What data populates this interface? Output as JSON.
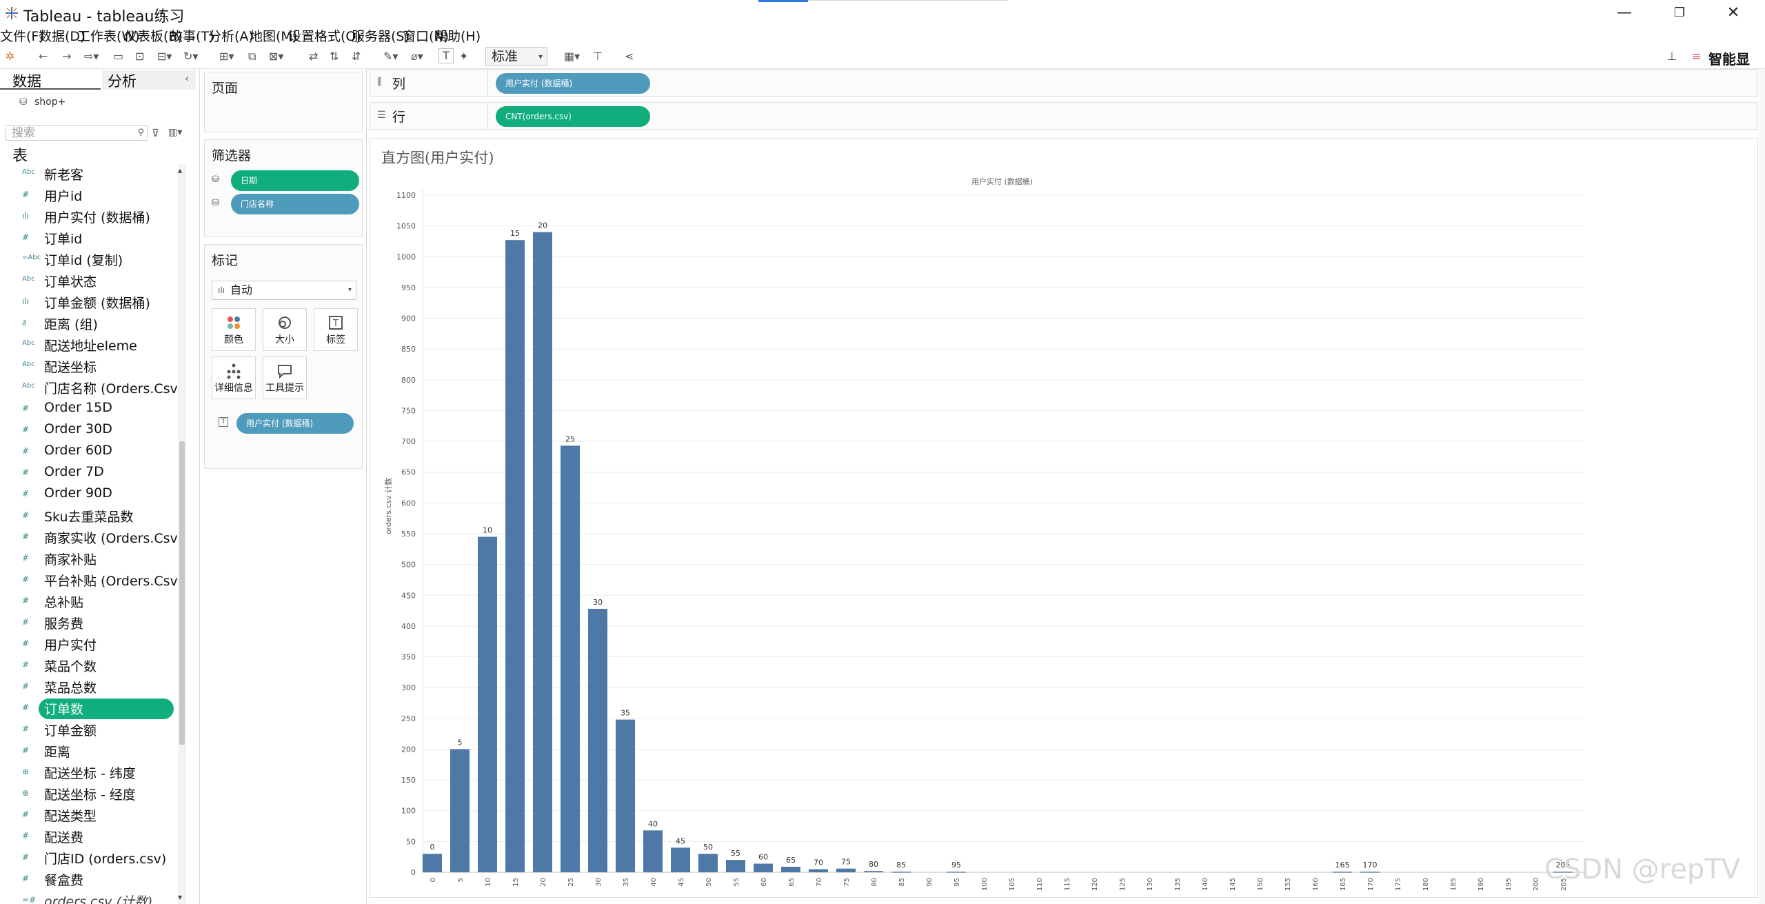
{
  "window": {
    "title": "Tableau - tableau练习",
    "minimize": "—",
    "restore": "❐",
    "close": "✕"
  },
  "menu": [
    "文件(F)",
    "数据(D)",
    "工作表(W)",
    "仪表板(B)",
    "故事(T)",
    "分析(A)",
    "地图(M)",
    "设置格式(O)",
    "服务器(S)",
    "窗口(N)",
    "帮助(H)"
  ],
  "toolbar": {
    "standard_select": "标准",
    "smart": "智能显"
  },
  "datapane": {
    "tab_data": "数据",
    "tab_analysis": "分析",
    "datasource": "shop+",
    "search_placeholder": "搜索",
    "table_header": "表",
    "fields": [
      {
        "icon": "Abc",
        "name": "新老客"
      },
      {
        "icon": "#",
        "name": "用户id"
      },
      {
        "icon": "ılı",
        "name": "用户实付 (数据桶)"
      },
      {
        "icon": "#",
        "name": "订单id"
      },
      {
        "icon": "=Abc",
        "name": "订单id (复制)"
      },
      {
        "icon": "Abc",
        "name": "订单状态"
      },
      {
        "icon": "ılı",
        "name": "订单金额 (数据桶)"
      },
      {
        "icon": "∂",
        "name": "距离 (组)"
      },
      {
        "icon": "Abc",
        "name": "配送地址eleme"
      },
      {
        "icon": "Abc",
        "name": "配送坐标"
      },
      {
        "icon": "Abc",
        "name": "门店名称 (Orders.Csv)"
      },
      {
        "icon": "#",
        "name": "Order 15D"
      },
      {
        "icon": "#",
        "name": "Order 30D"
      },
      {
        "icon": "#",
        "name": "Order 60D"
      },
      {
        "icon": "#",
        "name": "Order 7D"
      },
      {
        "icon": "#",
        "name": "Order 90D"
      },
      {
        "icon": "#",
        "name": "Sku去重菜品数"
      },
      {
        "icon": "#",
        "name": "商家实收 (Orders.Csv)"
      },
      {
        "icon": "#",
        "name": "商家补贴"
      },
      {
        "icon": "#",
        "name": "平台补贴 (Orders.Csv)"
      },
      {
        "icon": "#",
        "name": "总补贴"
      },
      {
        "icon": "#",
        "name": "服务费"
      },
      {
        "icon": "#",
        "name": "用户实付"
      },
      {
        "icon": "#",
        "name": "菜品个数"
      },
      {
        "icon": "#",
        "name": "菜品总数"
      },
      {
        "icon": "#",
        "name": "订单数"
      },
      {
        "icon": "#",
        "name": "订单金额"
      },
      {
        "icon": "#",
        "name": "距离"
      },
      {
        "icon": "⊕",
        "name": "配送坐标 - 纬度"
      },
      {
        "icon": "⊕",
        "name": "配送坐标 - 经度"
      },
      {
        "icon": "#",
        "name": "配送类型"
      },
      {
        "icon": "#",
        "name": "配送费"
      },
      {
        "icon": "#",
        "name": "门店ID (orders.csv)"
      },
      {
        "icon": "#",
        "name": "餐盒费"
      },
      {
        "icon": "=#",
        "name": "orders.csv (计数)"
      }
    ],
    "selected_field": "订单数"
  },
  "cards": {
    "pages_title": "页面",
    "filters_title": "筛选器",
    "filters": [
      "日期",
      "门店名称"
    ],
    "marks_title": "标记",
    "marks_type": "自动",
    "mark_buttons": [
      {
        "icon": "color-icon",
        "label": "颜色"
      },
      {
        "icon": "size-icon",
        "label": "大小"
      },
      {
        "icon": "label-icon",
        "label": "标签"
      },
      {
        "icon": "detail-icon",
        "label": "详细信息"
      },
      {
        "icon": "tooltip-icon",
        "label": "工具提示"
      }
    ],
    "marks_pill": "用户实付 (数据桶)"
  },
  "shelves": {
    "columns_label": "列",
    "columns_pill": "用户实付 (数据桶)",
    "rows_label": "行",
    "rows_pill": "CNT(orders.csv)"
  },
  "viz": {
    "title": "直方图(用户实付)",
    "header": "用户实付 (数据桶)",
    "watermark": "CSDN @repTV"
  },
  "chart_data": {
    "type": "bar",
    "title": "直方图(用户实付)",
    "xlabel": "用户实付 (数据桶)",
    "ylabel": "orders.csv 计数",
    "ylim": [
      0,
      1100
    ],
    "yticks": [
      0,
      50,
      100,
      150,
      200,
      250,
      300,
      350,
      400,
      450,
      500,
      550,
      600,
      650,
      700,
      750,
      800,
      850,
      900,
      950,
      1000,
      1050,
      1100
    ],
    "categories": [
      "0",
      "5",
      "10",
      "15",
      "20",
      "25",
      "30",
      "35",
      "40",
      "45",
      "50",
      "55",
      "60",
      "65",
      "70",
      "75",
      "80",
      "85",
      "90",
      "95",
      "100",
      "105",
      "110",
      "115",
      "120",
      "125",
      "130",
      "135",
      "140",
      "145",
      "150",
      "155",
      "160",
      "165",
      "170",
      "175",
      "180",
      "185",
      "190",
      "195",
      "200",
      "205"
    ],
    "values": [
      30,
      200,
      545,
      1027,
      1040,
      693,
      428,
      248,
      68,
      40,
      30,
      20,
      14,
      9,
      5,
      6,
      2,
      1,
      0,
      1,
      0,
      0,
      0,
      0,
      0,
      0,
      0,
      0,
      0,
      0,
      0,
      0,
      0,
      1,
      1,
      0,
      0,
      0,
      0,
      0,
      0,
      1
    ],
    "data_labels": [
      "0",
      "5",
      "10",
      "15",
      "20",
      "25",
      "30",
      "35",
      "40",
      "45",
      "50",
      "55",
      "60",
      "65",
      "70",
      "75",
      "80",
      "85",
      "",
      "95",
      "",
      "",
      "",
      "",
      "",
      "",
      "",
      "",
      "",
      "",
      "",
      "",
      "",
      "165",
      "170",
      "",
      "",
      "",
      "",
      "",
      "",
      "205"
    ],
    "color": "#4e79a7",
    "grid": true
  }
}
